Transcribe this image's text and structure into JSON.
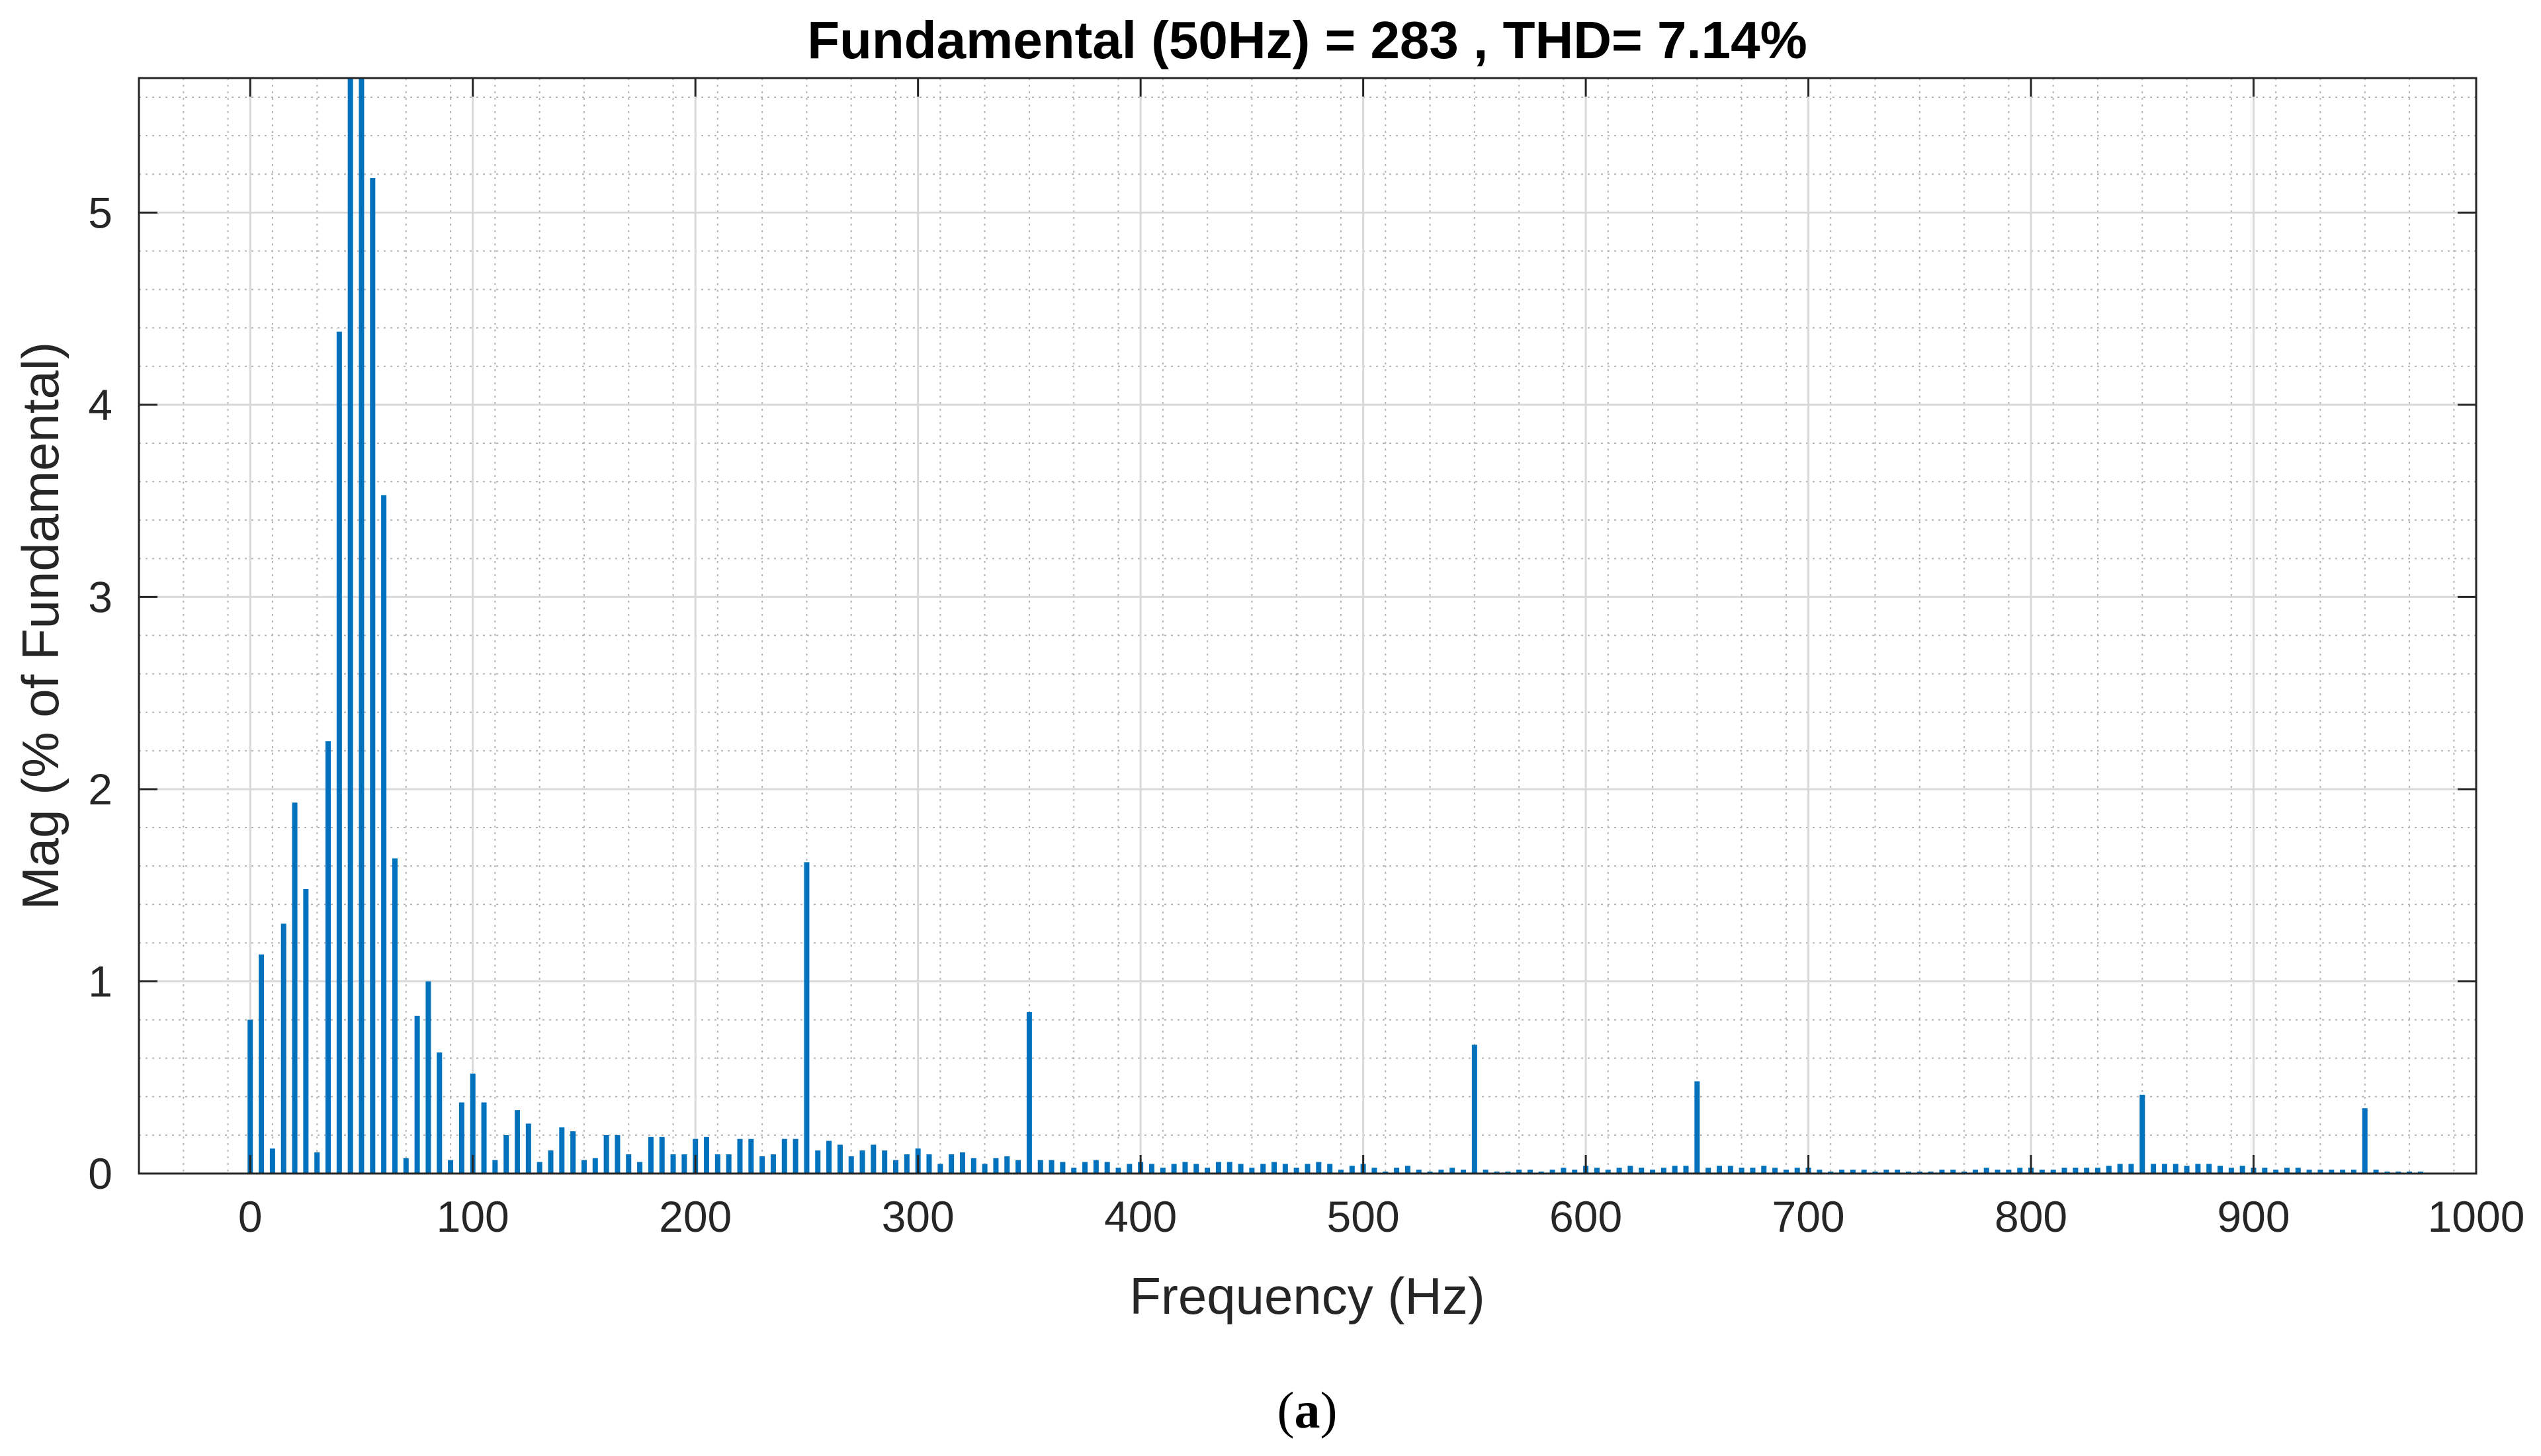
{
  "chart_data": {
    "type": "bar",
    "title": "Fundamental (50Hz) = 283 , THD= 7.14%",
    "xlabel": "Frequency (Hz)",
    "ylabel": "Mag (% of Fundamental)",
    "xlim": [
      -50,
      1000
    ],
    "ylim": [
      0,
      5.7
    ],
    "xticks": [
      0,
      100,
      200,
      300,
      400,
      500,
      600,
      700,
      800,
      900,
      1000
    ],
    "xtick_labels": [
      "0",
      "100",
      "200",
      "300",
      "400",
      "500",
      "600",
      "700",
      "800",
      "900",
      "1000"
    ],
    "yticks": [
      0,
      1,
      2,
      3,
      4,
      5
    ],
    "ytick_labels": [
      "0",
      "1",
      "2",
      "3",
      "4",
      "5"
    ],
    "grid": true,
    "minor_grid": true,
    "bar_color": "#0072bd",
    "series": [
      {
        "x": [
          0,
          5,
          10,
          15,
          20,
          25,
          30,
          35,
          40,
          45,
          50,
          55,
          60,
          65,
          70,
          75,
          80,
          85,
          90,
          95,
          100,
          105,
          110,
          115,
          120,
          125,
          130,
          135,
          140,
          145,
          150,
          155,
          160,
          165,
          170,
          175,
          180,
          185,
          190,
          195,
          200,
          205,
          210,
          215,
          220,
          225,
          230,
          235,
          240,
          245,
          250,
          255,
          260,
          265,
          270,
          275,
          280,
          285,
          290,
          295,
          300,
          305,
          310,
          315,
          320,
          325,
          330,
          335,
          340,
          345,
          350,
          355,
          360,
          365,
          370,
          375,
          380,
          385,
          390,
          395,
          400,
          405,
          410,
          415,
          420,
          425,
          430,
          435,
          440,
          445,
          450,
          455,
          460,
          465,
          470,
          475,
          480,
          485,
          490,
          495,
          500,
          505,
          510,
          515,
          520,
          525,
          530,
          535,
          540,
          545,
          550,
          555,
          560,
          565,
          570,
          575,
          580,
          585,
          590,
          595,
          600,
          605,
          610,
          615,
          620,
          625,
          630,
          635,
          640,
          645,
          650,
          655,
          660,
          665,
          670,
          675,
          680,
          685,
          690,
          695,
          700,
          705,
          710,
          715,
          720,
          725,
          730,
          735,
          740,
          745,
          750,
          755,
          760,
          765,
          770,
          775,
          780,
          785,
          790,
          795,
          800,
          805,
          810,
          815,
          820,
          825,
          830,
          835,
          840,
          845,
          850,
          855,
          860,
          865,
          870,
          875,
          880,
          885,
          890,
          895,
          900,
          905,
          910,
          915,
          920,
          925,
          930,
          935,
          940,
          945,
          950,
          955,
          960,
          965,
          970,
          975
        ],
        "values": [
          0.8,
          1.14,
          0.13,
          1.3,
          1.93,
          1.48,
          0.11,
          2.25,
          4.38,
          5.7,
          5.7,
          5.18,
          3.53,
          1.64,
          0.08,
          0.82,
          1.0,
          0.63,
          0.07,
          0.37,
          0.52,
          0.37,
          0.07,
          0.2,
          0.33,
          0.26,
          0.06,
          0.12,
          0.24,
          0.22,
          0.07,
          0.08,
          0.2,
          0.2,
          0.1,
          0.06,
          0.19,
          0.19,
          0.1,
          0.1,
          0.18,
          0.19,
          0.1,
          0.1,
          0.18,
          0.18,
          0.09,
          0.1,
          0.18,
          0.18,
          1.62,
          0.12,
          0.17,
          0.15,
          0.09,
          0.12,
          0.15,
          0.12,
          0.07,
          0.1,
          0.13,
          0.1,
          0.05,
          0.1,
          0.11,
          0.08,
          0.05,
          0.08,
          0.09,
          0.07,
          0.84,
          0.07,
          0.07,
          0.06,
          0.03,
          0.06,
          0.07,
          0.06,
          0.03,
          0.05,
          0.06,
          0.05,
          0.03,
          0.05,
          0.06,
          0.05,
          0.03,
          0.06,
          0.06,
          0.05,
          0.03,
          0.05,
          0.06,
          0.05,
          0.03,
          0.05,
          0.06,
          0.05,
          0.02,
          0.04,
          0.05,
          0.03,
          0.01,
          0.03,
          0.04,
          0.02,
          0.01,
          0.02,
          0.03,
          0.02,
          0.67,
          0.02,
          0.01,
          0.01,
          0.02,
          0.02,
          0.01,
          0.02,
          0.03,
          0.02,
          0.04,
          0.03,
          0.02,
          0.03,
          0.04,
          0.03,
          0.02,
          0.03,
          0.04,
          0.04,
          0.48,
          0.03,
          0.04,
          0.04,
          0.03,
          0.03,
          0.04,
          0.03,
          0.02,
          0.03,
          0.03,
          0.02,
          0.01,
          0.02,
          0.02,
          0.02,
          0.01,
          0.02,
          0.02,
          0.01,
          0.01,
          0.01,
          0.02,
          0.02,
          0.01,
          0.02,
          0.03,
          0.02,
          0.02,
          0.03,
          0.03,
          0.02,
          0.02,
          0.03,
          0.03,
          0.03,
          0.03,
          0.04,
          0.05,
          0.05,
          0.41,
          0.05,
          0.05,
          0.05,
          0.04,
          0.05,
          0.05,
          0.04,
          0.03,
          0.04,
          0.03,
          0.03,
          0.02,
          0.03,
          0.03,
          0.02,
          0.02,
          0.02,
          0.02,
          0.02,
          0.34,
          0.02,
          0.01,
          0.01,
          0.01,
          0.01
        ]
      }
    ]
  },
  "caption": {
    "open": "(",
    "letter": "a",
    "close": ")"
  }
}
